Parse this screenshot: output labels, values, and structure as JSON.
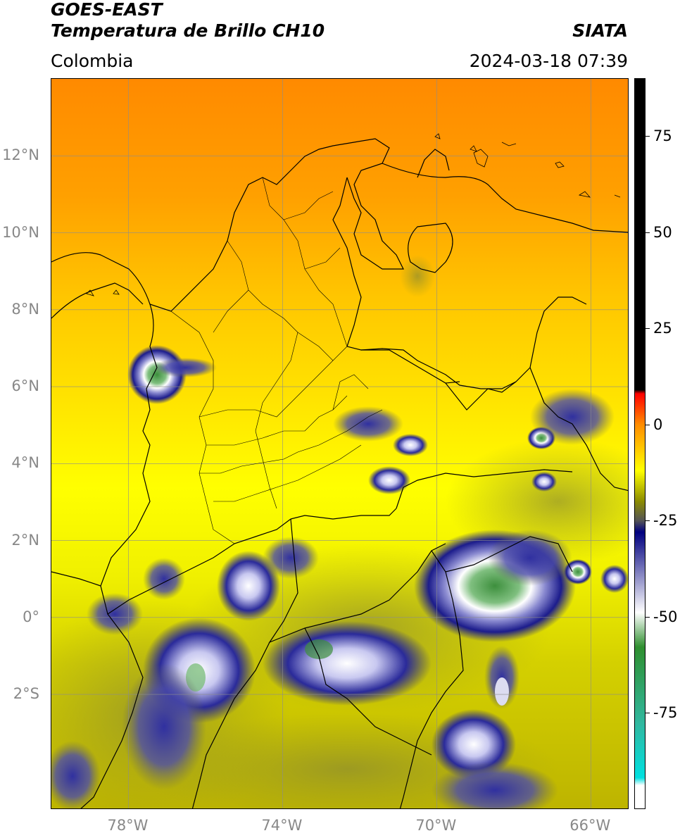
{
  "header": {
    "satellite": "GOES-EAST",
    "product": "Temperatura de Brillo CH10",
    "agency": "SIATA",
    "region": "Colombia",
    "datetime": "2024-03-18 07:39"
  },
  "map": {
    "lat_ticks": [
      {
        "label": "12°N",
        "lat": 12
      },
      {
        "label": "10°N",
        "lat": 10
      },
      {
        "label": "8°N",
        "lat": 8
      },
      {
        "label": "6°N",
        "lat": 6
      },
      {
        "label": "4°N",
        "lat": 4
      },
      {
        "label": "2°N",
        "lat": 2
      },
      {
        "label": "0°",
        "lat": 0
      },
      {
        "label": "2°S",
        "lat": -2
      }
    ],
    "lon_ticks": [
      {
        "label": "78°W",
        "lon": -78
      },
      {
        "label": "74°W",
        "lon": -74
      },
      {
        "label": "70°W",
        "lon": -70
      },
      {
        "label": "66°W",
        "lon": -66
      }
    ],
    "extent": {
      "lon_min": -80,
      "lon_max": -65,
      "lat_min": -5,
      "lat_max": 14
    }
  },
  "colorbar": {
    "ticks": [
      {
        "label": "75",
        "value": 75
      },
      {
        "label": "50",
        "value": 50
      },
      {
        "label": "25",
        "value": 25
      },
      {
        "label": "0",
        "value": 0
      },
      {
        "label": "-25",
        "value": -25
      },
      {
        "label": "-50",
        "value": -50
      },
      {
        "label": "-75",
        "value": -75
      }
    ],
    "range": [
      -100,
      90
    ],
    "colors": {
      "black": "#000000",
      "red": "#ff0000",
      "orange": "#ff8c00",
      "yellow": "#ffff00",
      "olive": "#8c8c00",
      "darkgray": "#555555",
      "navy": "#00007f",
      "white": "#ffffff",
      "green": "#2f8f2f",
      "teal": "#30b8a0",
      "cyan": "#00e0e0"
    }
  }
}
